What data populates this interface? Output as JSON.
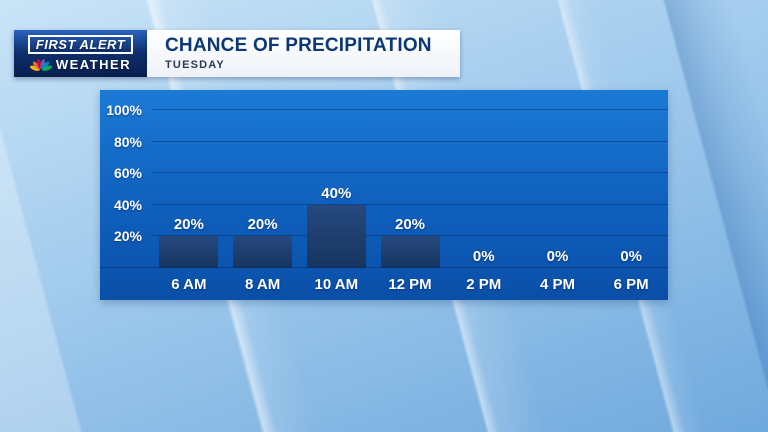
{
  "brand": {
    "line1": "FIRST ALERT",
    "line2": "WEATHER",
    "icon": "nbc-peacock-icon",
    "peacock_colors": [
      "#FCB711",
      "#F37021",
      "#CC004C",
      "#6460AA",
      "#0089D0",
      "#0DB14B"
    ]
  },
  "header": {
    "title": "CHANCE OF PRECIPITATION",
    "subtitle": "TUESDAY"
  },
  "chart_data": {
    "type": "bar",
    "title": "CHANCE OF PRECIPITATION",
    "subtitle": "TUESDAY",
    "categories": [
      "6 AM",
      "8 AM",
      "10 AM",
      "12 PM",
      "2 PM",
      "4 PM",
      "6 PM"
    ],
    "values": [
      20,
      20,
      40,
      20,
      0,
      0,
      0
    ],
    "value_labels": [
      "20%",
      "20%",
      "40%",
      "20%",
      "0%",
      "0%",
      "0%"
    ],
    "y_ticks": [
      {
        "value": 100,
        "label": "100%"
      },
      {
        "value": 80,
        "label": "80%"
      },
      {
        "value": 60,
        "label": "60%"
      },
      {
        "value": 40,
        "label": "40%"
      },
      {
        "value": 20,
        "label": "20%"
      }
    ],
    "ylim": [
      0,
      100
    ],
    "grid": true,
    "legend": false,
    "xlabel": "",
    "ylabel": ""
  },
  "colors": {
    "panel_top": "#1b7ad6",
    "panel_bottom": "#0a4fa8",
    "bar": "#16345f",
    "title_text": "#0d3876",
    "badge_bg": "#0e2f6d",
    "label_text": "#ffffff",
    "background": "#9cc4e8"
  }
}
